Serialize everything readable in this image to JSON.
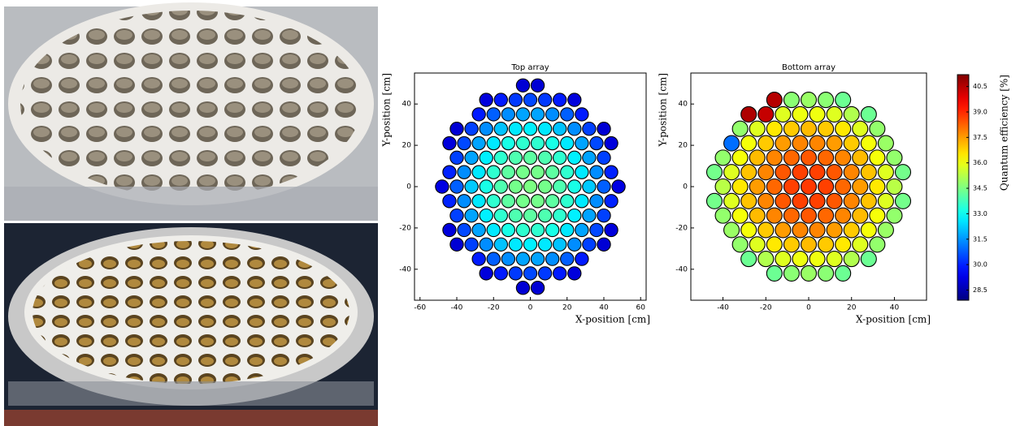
{
  "chart_data": [
    {
      "type": "scatter",
      "title": "Top array",
      "x_label": "X-position [cm]",
      "y_label": "Y-position [cm]",
      "xlim": [
        -63,
        63
      ],
      "ylim": [
        -55,
        55
      ],
      "xticks": [
        -60,
        -40,
        -20,
        0,
        20,
        40,
        60
      ],
      "yticks": [
        -40,
        -20,
        0,
        20,
        40
      ],
      "x": [
        -4,
        4,
        -24,
        -16,
        -8,
        0,
        8,
        16,
        24,
        -28,
        -20,
        -12,
        -4,
        4,
        12,
        20,
        28,
        -40,
        -32,
        -24,
        -16,
        -8,
        0,
        8,
        16,
        24,
        32,
        40,
        -44,
        -36,
        -28,
        -20,
        -12,
        -4,
        4,
        12,
        20,
        28,
        36,
        44,
        -40,
        -32,
        -24,
        -16,
        -8,
        0,
        8,
        16,
        24,
        32,
        40,
        -44,
        -36,
        -28,
        -20,
        -12,
        -4,
        4,
        12,
        20,
        28,
        36,
        44,
        -48,
        -40,
        -32,
        -24,
        -16,
        -8,
        0,
        8,
        16,
        24,
        32,
        40,
        48,
        -44,
        -36,
        -28,
        -20,
        -12,
        -4,
        4,
        12,
        20,
        28,
        36,
        44,
        -40,
        -32,
        -24,
        -16,
        -8,
        0,
        8,
        16,
        24,
        32,
        40,
        -44,
        -36,
        -28,
        -20,
        -12,
        -4,
        4,
        12,
        20,
        28,
        36,
        44,
        -40,
        -32,
        -24,
        -16,
        -8,
        0,
        8,
        16,
        24,
        32,
        40,
        -28,
        -20,
        -12,
        -4,
        4,
        12,
        20,
        28,
        -24,
        -16,
        -8,
        0,
        8,
        16,
        24,
        -4,
        4
      ],
      "y": [
        49,
        49,
        42,
        42,
        42,
        42,
        42,
        42,
        42,
        35,
        35,
        35,
        35,
        35,
        35,
        35,
        35,
        28,
        28,
        28,
        28,
        28,
        28,
        28,
        28,
        28,
        28,
        28,
        21,
        21,
        21,
        21,
        21,
        21,
        21,
        21,
        21,
        21,
        21,
        21,
        14,
        14,
        14,
        14,
        14,
        14,
        14,
        14,
        14,
        14,
        14,
        7,
        7,
        7,
        7,
        7,
        7,
        7,
        7,
        7,
        7,
        7,
        7,
        0,
        0,
        0,
        0,
        0,
        0,
        0,
        0,
        0,
        0,
        0,
        0,
        0,
        -7,
        -7,
        -7,
        -7,
        -7,
        -7,
        -7,
        -7,
        -7,
        -7,
        -7,
        -7,
        -14,
        -14,
        -14,
        -14,
        -14,
        -14,
        -14,
        -14,
        -14,
        -14,
        -14,
        -21,
        -21,
        -21,
        -21,
        -21,
        -21,
        -21,
        -21,
        -21,
        -21,
        -21,
        -21,
        -28,
        -28,
        -28,
        -28,
        -28,
        -28,
        -28,
        -28,
        -28,
        -28,
        -28,
        -35,
        -35,
        -35,
        -35,
        -35,
        -35,
        -35,
        -35,
        -42,
        -42,
        -42,
        -42,
        -42,
        -42,
        -42,
        -49,
        -49
      ],
      "values": [
        29.0,
        29.0,
        29.1,
        29.9,
        30.3,
        30.5,
        30.3,
        29.9,
        29.1,
        29.9,
        30.8,
        31.4,
        31.7,
        31.7,
        31.4,
        30.8,
        29.9,
        29.0,
        30.4,
        31.4,
        32.1,
        32.6,
        32.7,
        32.6,
        32.1,
        31.4,
        30.4,
        29.0,
        29.1,
        30.5,
        31.7,
        32.6,
        33.2,
        33.5,
        33.5,
        33.2,
        32.6,
        31.7,
        30.5,
        29.1,
        30.4,
        31.7,
        32.7,
        33.5,
        33.9,
        34.1,
        33.9,
        33.5,
        32.7,
        31.7,
        30.4,
        30.0,
        31.4,
        32.6,
        33.5,
        34.1,
        34.4,
        34.4,
        34.1,
        33.5,
        32.6,
        31.4,
        30.0,
        29.2,
        30.8,
        32.2,
        33.2,
        33.9,
        34.4,
        34.5,
        34.4,
        33.9,
        33.2,
        32.2,
        30.8,
        29.2,
        30.0,
        31.4,
        32.6,
        33.5,
        34.1,
        34.4,
        34.4,
        34.1,
        33.5,
        32.6,
        31.4,
        30.0,
        30.4,
        31.7,
        32.7,
        33.5,
        33.9,
        34.1,
        33.9,
        33.5,
        32.7,
        31.7,
        30.4,
        29.1,
        30.5,
        31.7,
        32.6,
        33.2,
        33.5,
        33.5,
        33.2,
        32.6,
        31.7,
        30.5,
        29.1,
        29.0,
        30.4,
        31.4,
        32.1,
        32.6,
        32.7,
        32.6,
        32.1,
        31.4,
        30.4,
        29.0,
        29.9,
        30.8,
        31.4,
        31.7,
        31.7,
        31.4,
        30.8,
        29.9,
        29.1,
        29.9,
        30.3,
        30.5,
        30.3,
        29.9,
        29.1,
        29.0,
        29.0
      ]
    },
    {
      "type": "scatter",
      "title": "Bottom array",
      "x_label": "X-position [cm]",
      "y_label": "Y-position [cm]",
      "xlim": [
        -55,
        55
      ],
      "ylim": [
        -55,
        55
      ],
      "xticks": [
        -40,
        -20,
        0,
        20,
        40
      ],
      "yticks": [
        -40,
        -20,
        0,
        20,
        40
      ],
      "x": [
        -16,
        -8,
        0,
        8,
        16,
        -28,
        -20,
        -12,
        -4,
        4,
        12,
        20,
        28,
        -32,
        -24,
        -16,
        -8,
        0,
        8,
        16,
        24,
        32,
        -36,
        -28,
        -20,
        -12,
        -4,
        4,
        12,
        20,
        28,
        36,
        -40,
        -32,
        -24,
        -16,
        -8,
        0,
        8,
        16,
        24,
        32,
        40,
        -44,
        -36,
        -28,
        -20,
        -12,
        -4,
        4,
        12,
        20,
        28,
        36,
        44,
        -40,
        -32,
        -24,
        -16,
        -8,
        0,
        8,
        16,
        24,
        32,
        40,
        -44,
        -36,
        -28,
        -20,
        -12,
        -4,
        4,
        12,
        20,
        28,
        36,
        44,
        -40,
        -32,
        -24,
        -16,
        -8,
        0,
        8,
        16,
        24,
        32,
        40,
        -36,
        -28,
        -20,
        -12,
        -4,
        4,
        12,
        20,
        28,
        36,
        -32,
        -24,
        -16,
        -8,
        0,
        8,
        16,
        24,
        32,
        -28,
        -20,
        -12,
        -4,
        4,
        12,
        20,
        28,
        -16,
        -8,
        0,
        8,
        16
      ],
      "y": [
        42,
        42,
        42,
        42,
        42,
        35,
        35,
        35,
        35,
        35,
        35,
        35,
        35,
        28,
        28,
        28,
        28,
        28,
        28,
        28,
        28,
        28,
        21,
        21,
        21,
        21,
        21,
        21,
        21,
        21,
        21,
        21,
        14,
        14,
        14,
        14,
        14,
        14,
        14,
        14,
        14,
        14,
        14,
        7,
        7,
        7,
        7,
        7,
        7,
        7,
        7,
        7,
        7,
        7,
        7,
        0,
        0,
        0,
        0,
        0,
        0,
        0,
        0,
        0,
        0,
        0,
        -7,
        -7,
        -7,
        -7,
        -7,
        -7,
        -7,
        -7,
        -7,
        -7,
        -7,
        -7,
        -14,
        -14,
        -14,
        -14,
        -14,
        -14,
        -14,
        -14,
        -14,
        -14,
        -14,
        -21,
        -21,
        -21,
        -21,
        -21,
        -21,
        -21,
        -21,
        -21,
        -21,
        -28,
        -28,
        -28,
        -28,
        -28,
        -28,
        -28,
        -28,
        -28,
        -35,
        -35,
        -35,
        -35,
        -35,
        -35,
        -35,
        -35,
        -42,
        -42,
        -42,
        -42,
        -42
      ],
      "values": [
        40.5,
        34.7,
        34.9,
        34.7,
        34.3,
        40.6,
        40.3,
        35.8,
        36.0,
        36.0,
        35.8,
        35.2,
        34.3,
        34.8,
        35.8,
        36.5,
        36.9,
        37.1,
        36.9,
        36.5,
        35.8,
        34.8,
        31.0,
        36.1,
        36.9,
        37.5,
        37.8,
        37.8,
        37.5,
        36.9,
        36.1,
        34.9,
        34.8,
        36.1,
        37.1,
        37.8,
        38.2,
        38.4,
        38.2,
        37.8,
        37.1,
        36.1,
        34.8,
        34.4,
        35.8,
        37.0,
        37.8,
        38.4,
        38.7,
        38.7,
        38.4,
        37.8,
        37.0,
        35.8,
        34.4,
        35.3,
        36.5,
        37.5,
        38.2,
        38.7,
        38.8,
        38.7,
        38.2,
        37.5,
        36.5,
        35.3,
        34.4,
        35.8,
        37.0,
        37.8,
        38.4,
        38.7,
        38.7,
        38.4,
        37.8,
        37.0,
        35.8,
        34.4,
        34.8,
        36.1,
        37.1,
        37.8,
        38.2,
        38.4,
        38.2,
        37.8,
        37.1,
        36.1,
        34.8,
        34.9,
        36.1,
        36.9,
        37.5,
        37.8,
        37.8,
        37.5,
        36.9,
        36.1,
        34.9,
        34.8,
        35.8,
        36.5,
        36.9,
        37.1,
        36.9,
        36.5,
        35.8,
        34.8,
        34.3,
        35.2,
        35.8,
        36.0,
        36.0,
        35.8,
        35.2,
        34.3,
        34.3,
        34.7,
        34.9,
        34.7,
        34.3
      ]
    }
  ],
  "colorbar": {
    "label": "Quantum efficiency [%]",
    "colormap": "jet",
    "clim": [
      27.9,
      41.2
    ],
    "ticks": [
      28.5,
      {
        "value": 30,
        "label": "30.0"
      },
      31.5,
      {
        "value": 33,
        "label": "33.0"
      },
      34.5,
      {
        "value": 36,
        "label": "36.0"
      },
      37.5,
      {
        "value": 39,
        "label": "39.0"
      },
      40.5
    ]
  }
}
